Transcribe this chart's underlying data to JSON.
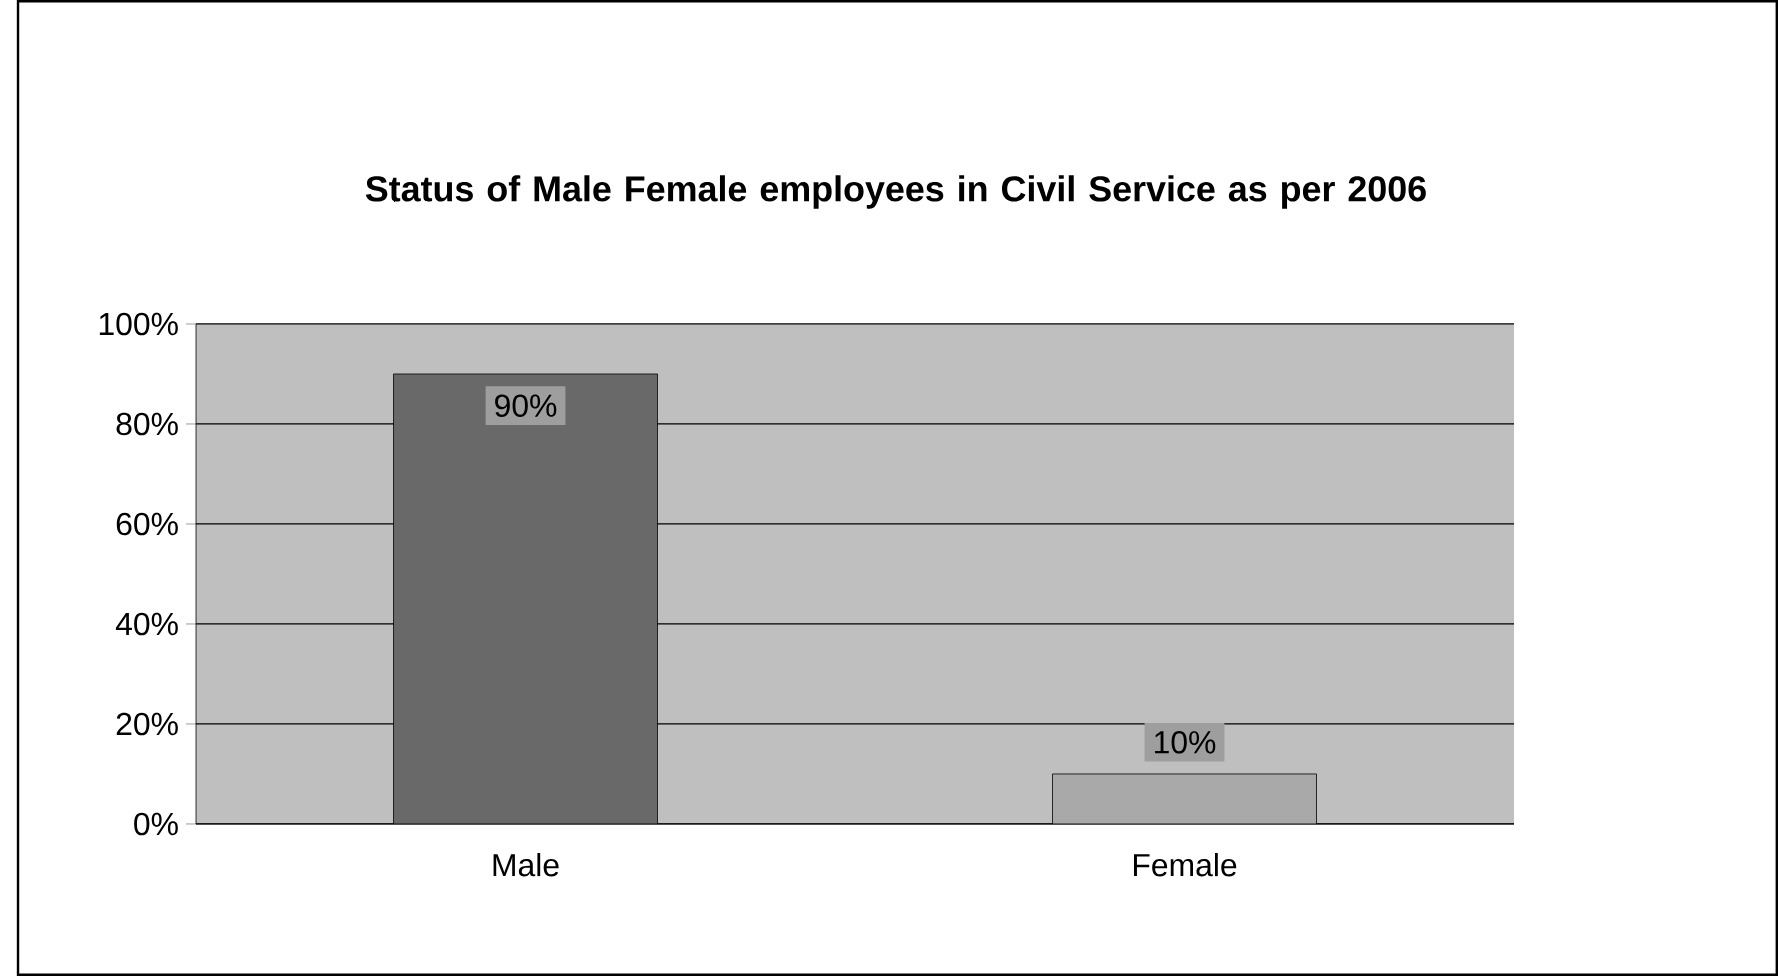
{
  "chart_data": {
    "type": "bar",
    "title": "Status of Male Female employees in Civil Service as per 2006",
    "categories": [
      "Male",
      "Female"
    ],
    "values": [
      90,
      10
    ],
    "colors": [
      "#696969",
      "#a9a9a9"
    ],
    "value_labels": [
      "90%",
      "10%"
    ],
    "ylim": [
      0,
      100
    ],
    "yticks": [
      {
        "value": 0,
        "label": "0%"
      },
      {
        "value": 20,
        "label": "20%"
      },
      {
        "value": 40,
        "label": "40%"
      },
      {
        "value": 60,
        "label": "60%"
      },
      {
        "value": 80,
        "label": "80%"
      },
      {
        "value": 100,
        "label": "100%"
      }
    ],
    "grid": "y"
  }
}
